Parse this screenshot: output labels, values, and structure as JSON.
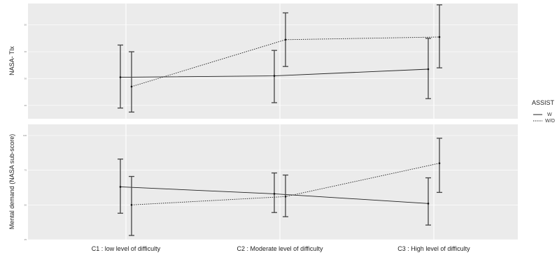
{
  "chart_data": [
    {
      "type": "line",
      "panel": "top",
      "ylabel": "NASA- Tlx",
      "xlabel": "",
      "categories": [
        "C1 : low level of difficulty",
        "C2 : Moderate level of difficulty",
        "C3 : High level of difficulty"
      ],
      "ylim": [
        15,
        58
      ],
      "yticks": [
        "20",
        "30",
        "40",
        "50"
      ],
      "grid": true,
      "series": [
        {
          "name": "W",
          "values": [
            30.5,
            31.0,
            33.5
          ],
          "lower": [
            19.0,
            21.0,
            22.5
          ],
          "upper": [
            42.5,
            40.5,
            45.0
          ]
        },
        {
          "name": "W/O",
          "values": [
            27.0,
            44.5,
            45.5
          ],
          "lower": [
            17.5,
            34.5,
            34.0
          ],
          "upper": [
            40.0,
            54.5,
            57.5
          ]
        }
      ]
    },
    {
      "type": "line",
      "panel": "bottom",
      "ylabel": "Mental demand (NASA sub-score)",
      "xlabel": "",
      "categories": [
        "C1 : low level of difficulty",
        "C2 : Moderate level of difficulty",
        "C3 : High level of difficulty"
      ],
      "ylim": [
        25,
        108
      ],
      "yticks": [
        "25",
        "50",
        "75",
        "100"
      ],
      "grid": true,
      "series": [
        {
          "name": "W",
          "values": [
            63.0,
            58.0,
            51.0
          ],
          "lower": [
            44.0,
            44.5,
            35.5
          ],
          "upper": [
            83.0,
            73.0,
            69.5
          ]
        },
        {
          "name": "W/O",
          "values": [
            50.0,
            56.0,
            80.0
          ],
          "lower": [
            28.0,
            41.5,
            59.0
          ],
          "upper": [
            70.5,
            71.5,
            98.0
          ]
        }
      ]
    }
  ],
  "legend": {
    "title": "ASSIST",
    "placement": "right",
    "items": [
      {
        "label": "W",
        "style": "solid"
      },
      {
        "label": "W/O",
        "style": "dotted"
      }
    ]
  }
}
